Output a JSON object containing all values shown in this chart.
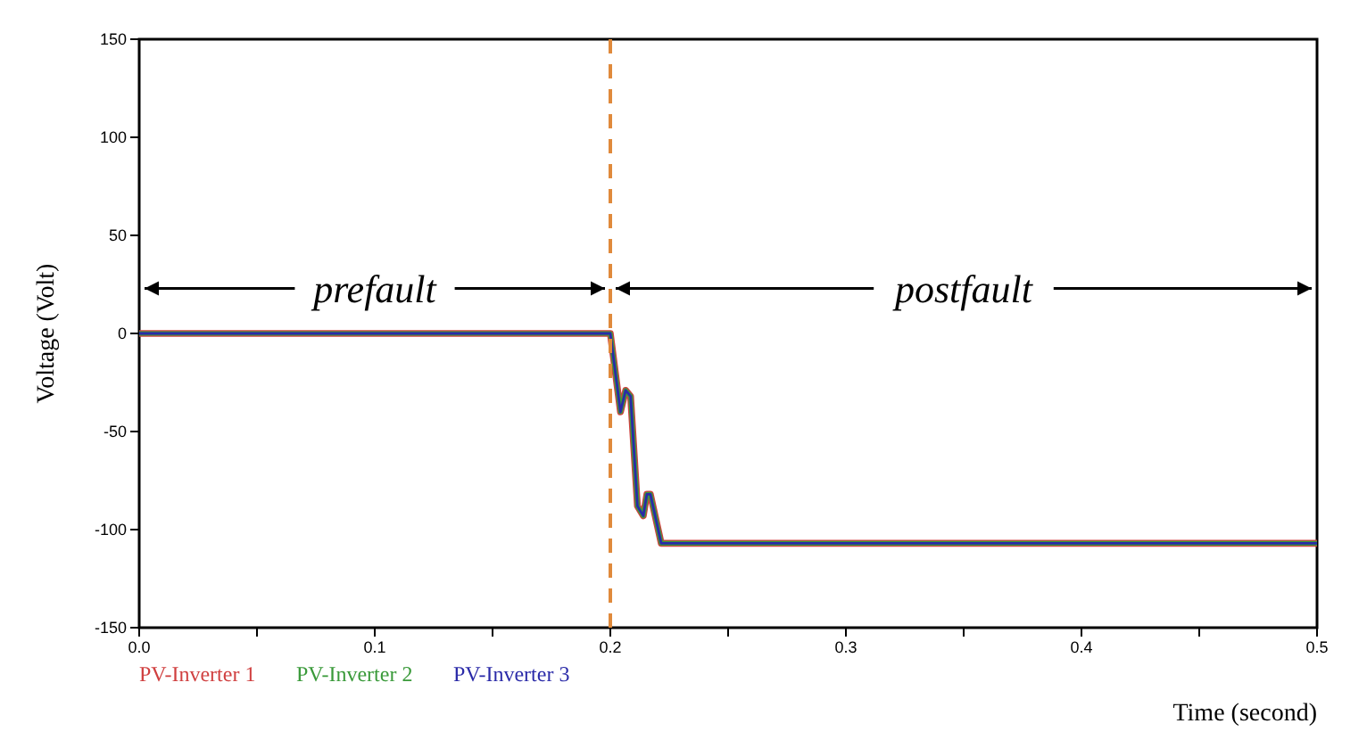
{
  "chart_data": {
    "type": "line",
    "xlabel": "Time (second)",
    "ylabel": "Voltage (Volt)",
    "xlim": [
      0,
      0.5
    ],
    "ylim": [
      -150,
      150
    ],
    "xticks": [
      {
        "value": 0,
        "label": "0.0"
      },
      {
        "value": 0.05,
        "label": null
      },
      0.1,
      {
        "value": 0.15,
        "label": null
      },
      0.2,
      {
        "value": 0.25,
        "label": null
      },
      0.3,
      {
        "value": 0.35,
        "label": null
      },
      0.4,
      {
        "value": 0.45,
        "label": null
      },
      0.5
    ],
    "yticks": [
      -150,
      -100,
      -50,
      0,
      50,
      100,
      150
    ],
    "x": [
      0,
      0.1,
      0.2,
      0.2043,
      0.2065,
      0.2086,
      0.2115,
      0.214,
      0.2155,
      0.217,
      0.2216,
      0.3,
      0.4,
      0.5
    ],
    "series": [
      {
        "name": "PV-Inverter 1",
        "color": "#d04040",
        "values": [
          0,
          0,
          0,
          -40,
          -29,
          -32,
          -88,
          -93,
          -82,
          -82,
          -107,
          -107,
          -107,
          -107
        ]
      },
      {
        "name": "PV-Inverter 2",
        "color": "#3a9a3a",
        "values": [
          0,
          0,
          0,
          -40,
          -29,
          -32,
          -88,
          -93,
          -82,
          -82,
          -107,
          -107,
          -107,
          -107
        ]
      },
      {
        "name": "PV-Inverter 3",
        "color": "#2a2aa8",
        "values": [
          0,
          0,
          0,
          -40,
          -29,
          -32,
          -88,
          -93,
          -82,
          -82,
          -107,
          -107,
          -107,
          -107
        ]
      }
    ],
    "ref_lines": [
      {
        "axis": "x",
        "value": 0.2,
        "color": "#e08a3c",
        "line_style": "dashed"
      }
    ],
    "annotations": [
      {
        "text": "prefault",
        "x": 0.2,
        "y": 23
      },
      {
        "text": "postfault",
        "x": 0.2,
        "y": 23
      }
    ],
    "grid": false,
    "legend": "bottom left",
    "marker": "none",
    "line_style": "solid"
  }
}
